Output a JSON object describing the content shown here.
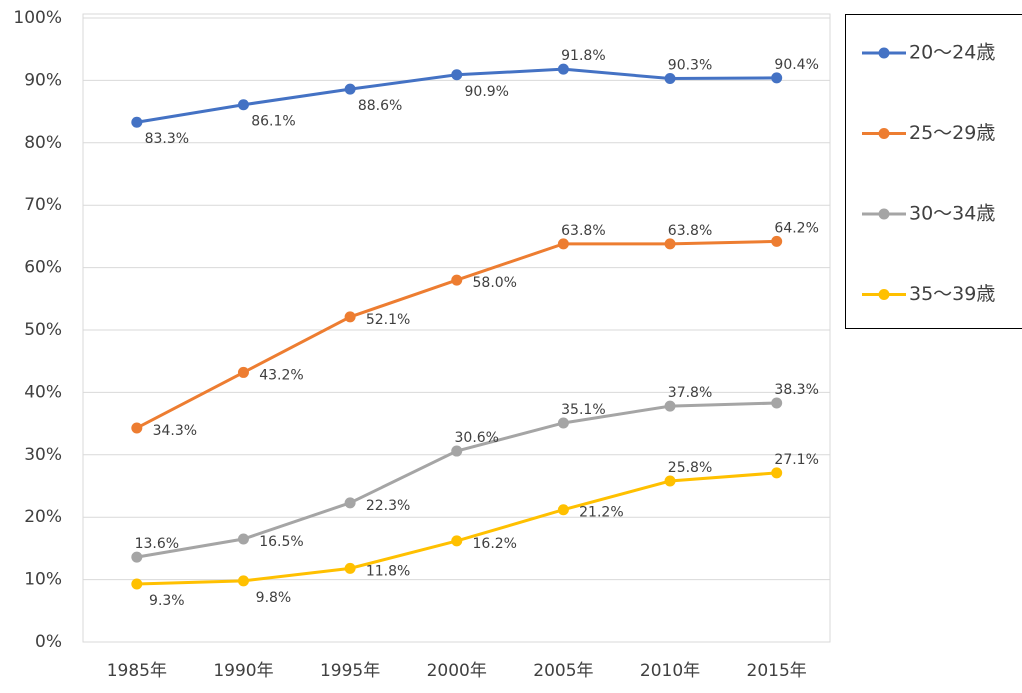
{
  "chart_data": {
    "type": "line",
    "categories": [
      "1985年",
      "1990年",
      "1995年",
      "2000年",
      "2005年",
      "2010年",
      "2015年"
    ],
    "series": [
      {
        "name": "20～24歳",
        "color": "#4472c4",
        "values": [
          83.3,
          86.1,
          88.6,
          90.9,
          91.8,
          90.3,
          90.4
        ],
        "value_labels": [
          "83.3%",
          "86.1%",
          "88.6%",
          "90.9%",
          "91.8%",
          "90.3%",
          "90.4%"
        ]
      },
      {
        "name": "25～29歳",
        "color": "#ed7d31",
        "values": [
          34.3,
          43.2,
          52.1,
          58.0,
          63.8,
          63.8,
          64.2
        ],
        "value_labels": [
          "34.3%",
          "43.2%",
          "52.1%",
          "58.0%",
          "63.8%",
          "63.8%",
          "64.2%"
        ]
      },
      {
        "name": "30～34歳",
        "color": "#a5a5a5",
        "values": [
          13.6,
          16.5,
          22.3,
          30.6,
          35.1,
          37.8,
          38.3
        ],
        "value_labels": [
          "13.6%",
          "16.5%",
          "22.3%",
          "30.6%",
          "35.1%",
          "37.8%",
          "38.3%"
        ]
      },
      {
        "name": "35～39歳",
        "color": "#ffc000",
        "values": [
          9.3,
          9.8,
          11.8,
          16.2,
          21.2,
          25.8,
          27.1
        ],
        "value_labels": [
          "9.3%",
          "9.8%",
          "11.8%",
          "16.2%",
          "21.2%",
          "25.8%",
          "27.1%"
        ]
      }
    ],
    "ylim": [
      0,
      100
    ],
    "yticks": [
      {
        "value": 0,
        "label": "0%"
      },
      {
        "value": 10,
        "label": "10%"
      },
      {
        "value": 20,
        "label": "20%"
      },
      {
        "value": 30,
        "label": "30%"
      },
      {
        "value": 40,
        "label": "40%"
      },
      {
        "value": 50,
        "label": "50%"
      },
      {
        "value": 60,
        "label": "60%"
      },
      {
        "value": 70,
        "label": "70%"
      },
      {
        "value": 80,
        "label": "80%"
      },
      {
        "value": 90,
        "label": "90%"
      },
      {
        "value": 100,
        "label": "100%"
      }
    ],
    "grid": true
  }
}
